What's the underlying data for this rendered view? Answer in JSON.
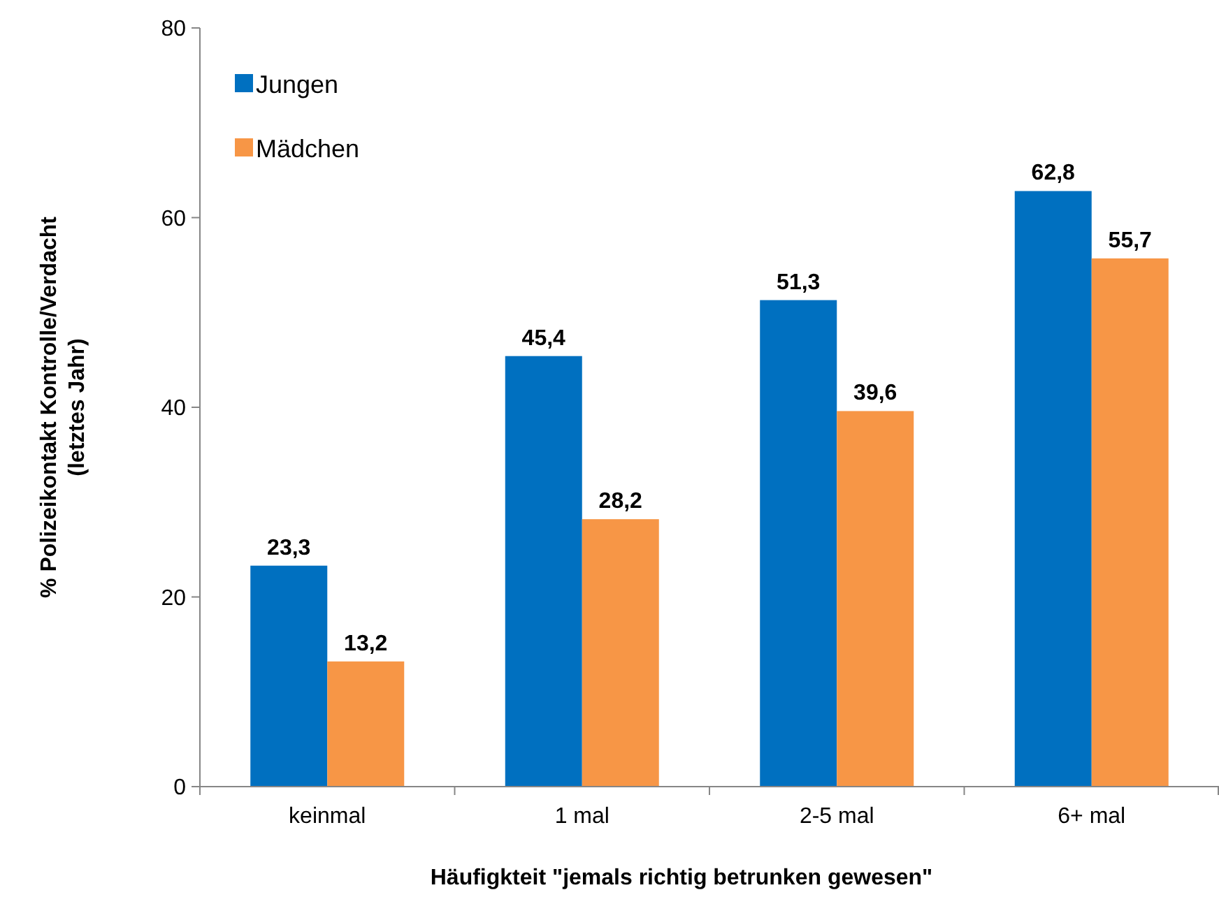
{
  "chart_data": {
    "type": "bar",
    "xlabel": "Häufigkteit \"jemals richtig betrunken gewesen\"",
    "ylabel": "% Polizeikontakt Kontrolle/Verdacht\n(letztes Jahr)",
    "categories": [
      "keinmal",
      "1 mal",
      "2-5 mal",
      "6+ mal"
    ],
    "series": [
      {
        "name": "Jungen",
        "color": "#0070c0",
        "values": [
          23.3,
          45.4,
          51.3,
          62.8
        ],
        "value_labels": [
          "23,3",
          "45,4",
          "51,3",
          "62,8"
        ]
      },
      {
        "name": "Mädchen",
        "color": "#f79646",
        "values": [
          13.2,
          28.2,
          39.6,
          55.7
        ],
        "value_labels": [
          "13,2",
          "28,2",
          "39,6",
          "55,7"
        ]
      }
    ],
    "ylim": [
      0,
      80
    ],
    "yticks": [
      0,
      20,
      40,
      60,
      80
    ],
    "grid": false,
    "legend": "top left"
  }
}
